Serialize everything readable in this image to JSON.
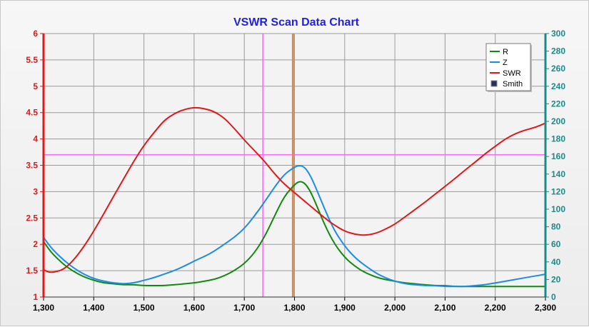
{
  "colors": {
    "title": "#1f1fe6",
    "left_axis": "#e01818",
    "right_axis": "#1b8a8a",
    "grid": "#9a9a9a",
    "cursor_magenta": "#ff66ff",
    "cursor_orange": "#e8873a",
    "r": "#0f8a0f",
    "z": "#1a8ce8",
    "swr": "#e01818",
    "smith": "#23365a"
  },
  "chart_data": {
    "type": "line",
    "title": "VSWR Scan Data Chart",
    "xlabel": "",
    "ylabel_left": "",
    "ylabel_right": "",
    "xlim": [
      1300,
      2300
    ],
    "ylim_left": [
      1,
      6
    ],
    "ylim_right": [
      0,
      300
    ],
    "x_ticks": [
      "1,300",
      "1,400",
      "1,500",
      "1,600",
      "1,700",
      "1,800",
      "1,900",
      "2,000",
      "2,100",
      "2,200",
      "2,300"
    ],
    "y_left_ticks": [
      "1",
      "1.5",
      "2",
      "2.5",
      "3",
      "3.5",
      "4",
      "4.5",
      "5",
      "5.5",
      "6"
    ],
    "y_right_ticks": [
      "0",
      "20",
      "40",
      "60",
      "80",
      "100",
      "120",
      "140",
      "160",
      "180",
      "200",
      "220",
      "240",
      "260",
      "280",
      "300"
    ],
    "grid": true,
    "legend_position": "top-right",
    "cursors": {
      "vertical_magenta_x": 1737,
      "vertical_orange_x": 1797,
      "horizontal_magenta_left": 3.7
    },
    "legend": [
      {
        "label": "R",
        "type": "line",
        "color_key": "r"
      },
      {
        "label": "Z",
        "type": "line",
        "color_key": "z"
      },
      {
        "label": "SWR",
        "type": "line",
        "color_key": "swr"
      },
      {
        "label": "Smith",
        "type": "box",
        "color_key": "smith"
      }
    ],
    "x": [
      1300,
      1310,
      1320,
      1340,
      1360,
      1380,
      1400,
      1420,
      1440,
      1460,
      1480,
      1500,
      1520,
      1540,
      1560,
      1580,
      1600,
      1620,
      1640,
      1660,
      1680,
      1700,
      1720,
      1740,
      1760,
      1780,
      1800,
      1810,
      1820,
      1830,
      1840,
      1860,
      1880,
      1900,
      1920,
      1940,
      1960,
      1980,
      2000,
      2020,
      2040,
      2060,
      2080,
      2100,
      2120,
      2140,
      2160,
      2180,
      2200,
      2220,
      2240,
      2260,
      2280,
      2300
    ],
    "series": [
      {
        "name": "R",
        "axis": "right",
        "color_key": "r",
        "values": [
          63,
          55,
          48,
          37,
          29,
          23,
          19,
          16,
          15,
          14,
          14,
          13,
          13,
          13,
          14,
          15,
          16,
          18,
          20,
          24,
          30,
          38,
          50,
          68,
          92,
          115,
          128,
          132,
          130,
          122,
          110,
          82,
          60,
          45,
          35,
          28,
          23,
          20,
          18,
          16,
          15,
          14,
          13,
          13,
          12,
          12,
          12,
          12,
          12,
          12,
          12,
          12,
          12,
          12
        ]
      },
      {
        "name": "Z",
        "axis": "right",
        "color_key": "z",
        "values": [
          68,
          60,
          53,
          42,
          33,
          26,
          21,
          18,
          16,
          15,
          16,
          19,
          22,
          26,
          30,
          35,
          41,
          46,
          52,
          60,
          68,
          78,
          92,
          108,
          125,
          140,
          148,
          150,
          148,
          140,
          128,
          100,
          75,
          58,
          45,
          36,
          28,
          22,
          18,
          15,
          14,
          13,
          13,
          12,
          12,
          12,
          13,
          14,
          16,
          18,
          20,
          22,
          24,
          26
        ]
      },
      {
        "name": "SWR",
        "axis": "left",
        "color_key": "swr",
        "values": [
          1.52,
          1.47,
          1.47,
          1.52,
          1.7,
          1.95,
          2.25,
          2.58,
          2.92,
          3.25,
          3.58,
          3.88,
          4.12,
          4.35,
          4.48,
          4.56,
          4.6,
          4.58,
          4.52,
          4.4,
          4.2,
          3.98,
          3.78,
          3.58,
          3.34,
          3.14,
          2.98,
          2.9,
          2.82,
          2.74,
          2.66,
          2.5,
          2.36,
          2.25,
          2.19,
          2.17,
          2.2,
          2.28,
          2.38,
          2.52,
          2.66,
          2.8,
          2.95,
          3.1,
          3.25,
          3.41,
          3.56,
          3.72,
          3.86,
          4.0,
          4.1,
          4.17,
          4.22,
          4.3
        ]
      }
    ]
  }
}
